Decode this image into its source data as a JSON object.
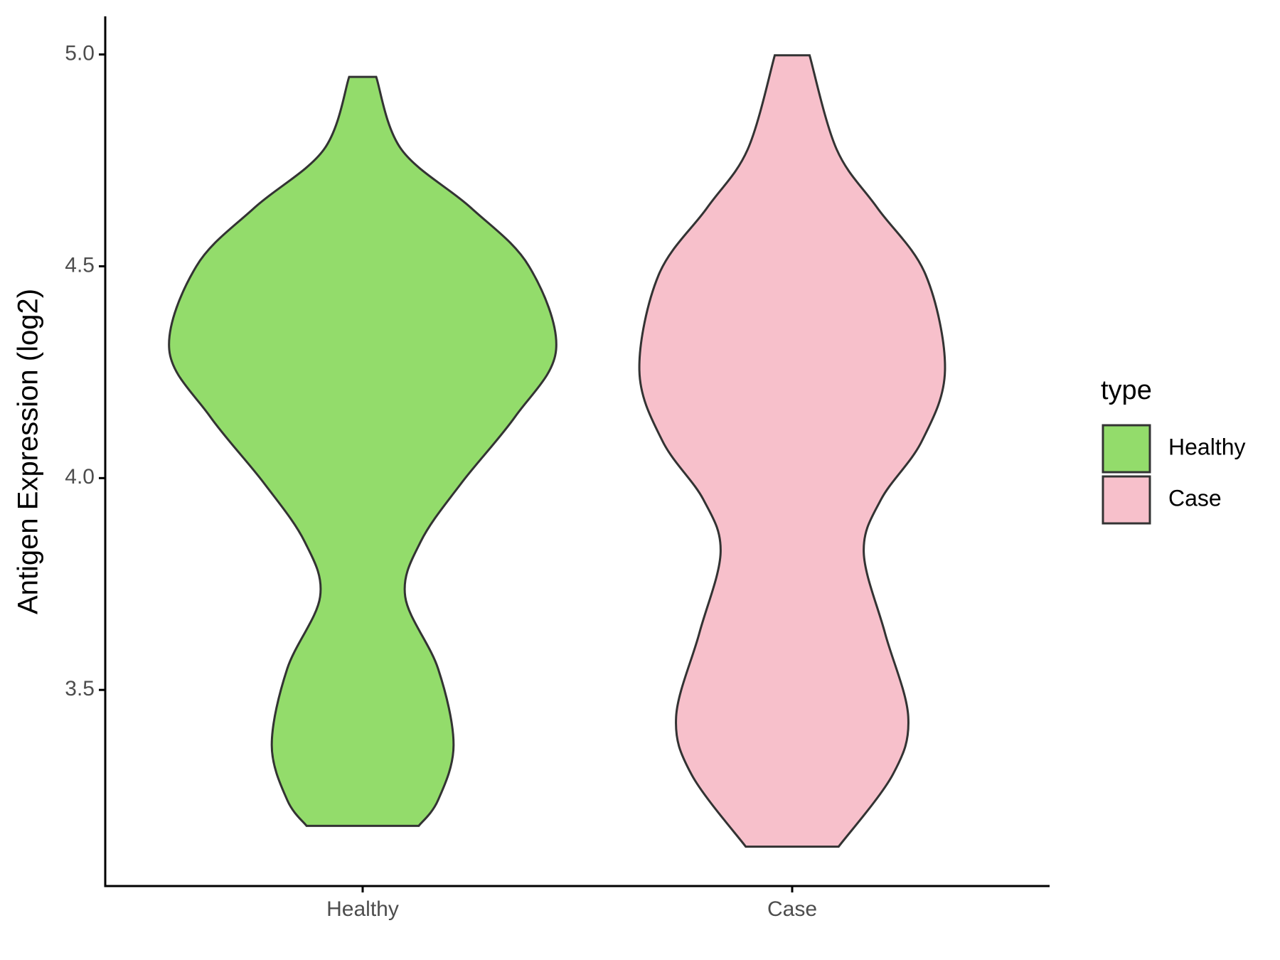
{
  "chart_data": {
    "type": "violin",
    "y_label": "Antigen Expression (log2)",
    "categories": [
      "Healthy",
      "Case"
    ],
    "legend_title": "type",
    "legend_position": "right",
    "ylim": [
      3.037,
      5.09
    ],
    "yticks": [
      3.5,
      {
        "value": 4,
        "label": "4.0"
      },
      4.5,
      {
        "value": 5,
        "label": "5.0"
      }
    ],
    "series": [
      {
        "name": "Healthy",
        "color": "#93dc6b",
        "y": [
          4.947,
          4.776,
          4.638,
          4.5,
          4.303,
          4.146,
          3.988,
          3.85,
          3.72,
          3.55,
          3.37,
          3.24,
          3.179
        ],
        "density": [
          0.07,
          0.2,
          0.56,
          0.86,
          1,
          0.79,
          0.51,
          0.3,
          0.22,
          0.39,
          0.47,
          0.39,
          0.29
        ]
      },
      {
        "name": "Case",
        "color": "#f7c0cb",
        "y": [
          4.998,
          4.776,
          4.638,
          4.48,
          4.254,
          4.087,
          3.95,
          3.825,
          3.634,
          3.437,
          3.3,
          3.13
        ],
        "density": [
          0.09,
          0.23,
          0.44,
          0.69,
          0.79,
          0.67,
          0.46,
          0.37,
          0.48,
          0.6,
          0.52,
          0.24
        ]
      }
    ]
  }
}
